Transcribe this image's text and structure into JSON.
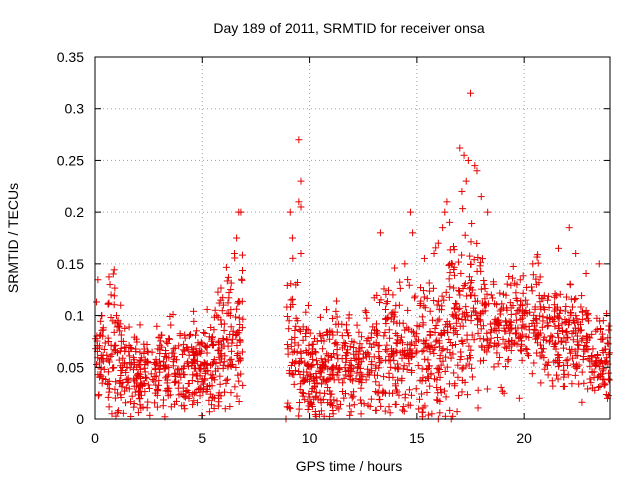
{
  "chart_data": {
    "type": "scatter",
    "title": "Day 189 of 2011, SRMTID for receiver onsa",
    "xlabel": "GPS time / hours",
    "ylabel": "SRMTID / TECUs",
    "xlim": [
      0,
      24
    ],
    "ylim": [
      0,
      0.35
    ],
    "x_ticks": [
      0,
      5,
      10,
      15,
      20
    ],
    "x_tick_labels": [
      "0",
      "5",
      "10",
      "15",
      "20"
    ],
    "y_ticks": [
      0,
      0.05,
      0.1,
      0.15,
      0.2,
      0.25,
      0.3,
      0.35
    ],
    "y_tick_labels": [
      "0",
      "0.05",
      "0.1",
      "0.15",
      "0.2",
      "0.25",
      "0.3",
      "0.35"
    ],
    "grid": true,
    "marker": "plus",
    "color": "#e60000",
    "density_profile": [
      {
        "x0": 0.0,
        "x1": 0.5,
        "mean": 0.07,
        "spread": 0.025,
        "count": 40
      },
      {
        "x0": 0.5,
        "x1": 1.2,
        "mean": 0.065,
        "spread": 0.03,
        "count": 60
      },
      {
        "x0": 1.2,
        "x1": 3.5,
        "mean": 0.047,
        "spread": 0.02,
        "count": 190
      },
      {
        "x0": 3.5,
        "x1": 5.5,
        "mean": 0.05,
        "spread": 0.022,
        "count": 170
      },
      {
        "x0": 5.5,
        "x1": 6.0,
        "mean": 0.065,
        "spread": 0.025,
        "count": 50
      },
      {
        "x0": 6.0,
        "x1": 6.9,
        "mean": 0.08,
        "spread": 0.035,
        "count": 80
      },
      {
        "x0": 8.9,
        "x1": 9.5,
        "mean": 0.06,
        "spread": 0.04,
        "count": 45
      },
      {
        "x0": 9.5,
        "x1": 10.5,
        "mean": 0.045,
        "spread": 0.025,
        "count": 100
      },
      {
        "x0": 10.5,
        "x1": 13.0,
        "mean": 0.055,
        "spread": 0.025,
        "count": 210
      },
      {
        "x0": 13.0,
        "x1": 15.0,
        "mean": 0.065,
        "spread": 0.03,
        "count": 170
      },
      {
        "x0": 15.0,
        "x1": 16.5,
        "mean": 0.07,
        "spread": 0.04,
        "count": 130
      },
      {
        "x0": 16.5,
        "x1": 18.0,
        "mean": 0.1,
        "spread": 0.045,
        "count": 140
      },
      {
        "x0": 18.0,
        "x1": 21.0,
        "mean": 0.095,
        "spread": 0.025,
        "count": 230
      },
      {
        "x0": 21.0,
        "x1": 23.0,
        "mean": 0.08,
        "spread": 0.025,
        "count": 170
      },
      {
        "x0": 23.0,
        "x1": 24.0,
        "mean": 0.06,
        "spread": 0.02,
        "count": 80
      }
    ],
    "notable_points": [
      [
        0.3,
        0.1
      ],
      [
        0.7,
        0.13
      ],
      [
        0.75,
        0.12
      ],
      [
        1.0,
        0.1
      ],
      [
        1.2,
        0.11
      ],
      [
        6.6,
        0.175
      ],
      [
        6.7,
        0.2
      ],
      [
        6.8,
        0.2
      ],
      [
        6.5,
        0.16
      ],
      [
        9.5,
        0.27
      ],
      [
        9.6,
        0.23
      ],
      [
        9.5,
        0.21
      ],
      [
        9.6,
        0.205
      ],
      [
        9.1,
        0.2
      ],
      [
        9.2,
        0.175
      ],
      [
        9.6,
        0.16
      ],
      [
        8.9,
        0.0
      ],
      [
        9.1,
        0.01
      ],
      [
        13.3,
        0.18
      ],
      [
        14.7,
        0.2
      ],
      [
        14.8,
        0.18
      ],
      [
        15.8,
        0.16
      ],
      [
        16.0,
        0.17
      ],
      [
        16.3,
        0.2
      ],
      [
        16.4,
        0.21
      ],
      [
        16.2,
        0.185
      ],
      [
        17.0,
        0.262
      ],
      [
        17.2,
        0.255
      ],
      [
        17.4,
        0.25
      ],
      [
        17.7,
        0.245
      ],
      [
        17.8,
        0.24
      ],
      [
        17.5,
        0.315
      ],
      [
        17.3,
        0.23
      ],
      [
        17.1,
        0.22
      ],
      [
        18.0,
        0.215
      ],
      [
        18.3,
        0.2
      ],
      [
        21.6,
        0.165
      ],
      [
        22.1,
        0.185
      ],
      [
        22.4,
        0.16
      ],
      [
        23.5,
        0.15
      ],
      [
        20.4,
        0.15
      ],
      [
        16.0,
        0.0
      ],
      [
        15.7,
        0.005
      ],
      [
        16.6,
        0.0
      ],
      [
        12.4,
        0.005
      ],
      [
        11.1,
        0.005
      ]
    ]
  }
}
